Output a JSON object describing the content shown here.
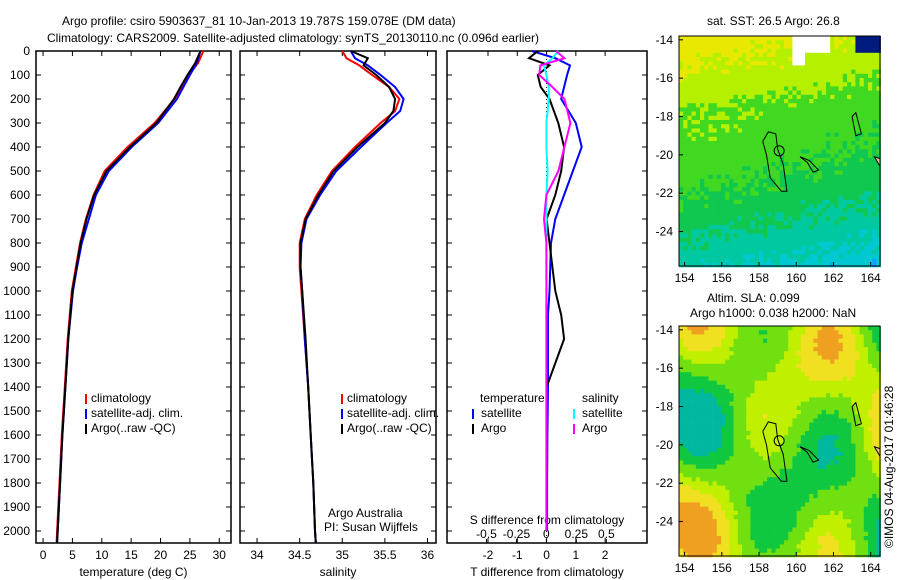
{
  "title": {
    "line1": "Argo profile: csiro 5903637_81 10-Jan-2013 19.787S 159.078E (DM data)",
    "line2": "Climatology: CARS2009. Satellite-adjusted climatology: synTS_20130110.nc (0.096d earlier)"
  },
  "colors": {
    "climatology": "#ff0000",
    "satellite": "#0000ff",
    "argo": "#000000",
    "sal_satellite": "#00ffff",
    "sal_argo": "#ff00ff"
  },
  "chart_data": [
    {
      "type": "line",
      "id": "temperature",
      "xlabel": "temperature (deg C)",
      "ylabel": "",
      "xlim": [
        -1.2,
        32
      ],
      "ylim": [
        2050,
        0
      ],
      "xticks": [
        0,
        5,
        10,
        15,
        20,
        25,
        30
      ],
      "yticks": [
        0,
        100,
        200,
        300,
        400,
        500,
        600,
        700,
        800,
        900,
        1000,
        1100,
        1200,
        1300,
        1400,
        1500,
        1600,
        1700,
        1800,
        1900,
        2000
      ],
      "depth": [
        0,
        50,
        100,
        150,
        200,
        300,
        400,
        500,
        600,
        700,
        800,
        900,
        1000,
        1200,
        1400,
        1600,
        1800,
        2000,
        2050
      ],
      "series": [
        {
          "name": "climatology",
          "color": "#ff0000",
          "values": [
            27.3,
            26.4,
            24.8,
            23.6,
            22.4,
            19.0,
            14.4,
            10.5,
            8.6,
            7.3,
            6.3,
            5.6,
            4.9,
            4.2,
            3.7,
            3.2,
            2.8,
            2.4,
            2.3
          ]
        },
        {
          "name": "satellite-adj. clim.",
          "color": "#0000ff",
          "values": [
            26.8,
            26.2,
            25.0,
            23.9,
            22.8,
            19.6,
            15.1,
            11.2,
            9.0,
            7.8,
            6.6,
            5.8,
            5.1,
            4.3,
            3.8,
            3.3,
            2.9,
            2.5,
            2.4
          ]
        },
        {
          "name": "Argo(..raw -QC)",
          "color": "#000000",
          "values": [
            26.8,
            25.9,
            24.6,
            23.4,
            22.3,
            19.3,
            14.8,
            10.8,
            8.7,
            7.4,
            6.4,
            5.7,
            5.0,
            4.3,
            3.8,
            3.3,
            2.9,
            2.5,
            2.4
          ]
        }
      ],
      "legend": [
        "climatology",
        "satellite-adj. clim.",
        "Argo(..raw -QC)"
      ]
    },
    {
      "type": "line",
      "id": "salinity",
      "xlabel": "salinity",
      "xlim": [
        33.8,
        36.1
      ],
      "ylim": [
        2050,
        0
      ],
      "xticks": [
        34,
        34.5,
        35,
        35.5,
        36
      ],
      "depth": [
        0,
        30,
        60,
        100,
        150,
        200,
        250,
        300,
        400,
        500,
        600,
        700,
        800,
        900,
        1000,
        1200,
        1400,
        1600,
        1800,
        2000,
        2050
      ],
      "series": [
        {
          "name": "climatology",
          "color": "#ff0000",
          "values": [
            35.0,
            35.05,
            35.2,
            35.35,
            35.55,
            35.67,
            35.62,
            35.45,
            35.15,
            34.88,
            34.7,
            34.56,
            34.5,
            34.5,
            34.52,
            34.56,
            34.6,
            34.63,
            34.66,
            34.68,
            34.69
          ]
        },
        {
          "name": "satellite-adj. clim.",
          "color": "#0000ff",
          "values": [
            35.1,
            35.15,
            35.3,
            35.45,
            35.62,
            35.72,
            35.68,
            35.52,
            35.22,
            34.93,
            34.74,
            34.58,
            34.52,
            34.51,
            34.53,
            34.56,
            34.6,
            34.63,
            34.66,
            34.68,
            34.69
          ]
        },
        {
          "name": "Argo(..raw -QC)",
          "color": "#000000",
          "values": [
            35.1,
            35.3,
            35.25,
            35.4,
            35.55,
            35.62,
            35.6,
            35.5,
            35.18,
            34.9,
            34.72,
            34.57,
            34.51,
            34.51,
            34.53,
            34.57,
            34.6,
            34.63,
            34.66,
            34.68,
            34.69
          ]
        }
      ],
      "legend": [
        "climatology",
        "satellite-adj. clim.",
        "Argo(..raw -QC)"
      ],
      "annotation": [
        "Argo Australia",
        "PI: Susan Wijffels"
      ]
    },
    {
      "type": "line",
      "id": "difference",
      "xlabel": "T difference from climatology",
      "x2label": "S difference from climatology",
      "xlim": [
        -3.4,
        3.43
      ],
      "x2lim": [
        -0.83,
        0.84
      ],
      "ylim": [
        2050,
        0
      ],
      "xticks": [
        -2,
        -1,
        0,
        1,
        2
      ],
      "x2ticks": [
        -0.5,
        -0.25,
        0,
        0.25,
        0.5
      ],
      "depth": [
        0,
        30,
        60,
        100,
        150,
        200,
        300,
        400,
        500,
        600,
        700,
        800,
        1000,
        1100,
        1200,
        1400,
        1600,
        1800,
        2000
      ],
      "series": [
        {
          "name": "temperature satellite",
          "color": "#0000ff",
          "axis": "T",
          "values": [
            -0.5,
            0.3,
            0.8,
            0.7,
            0.6,
            0.5,
            1.0,
            1.2,
            0.9,
            0.6,
            0.3,
            0.15,
            0.1,
            0.05,
            0.05,
            0.05,
            0.03,
            0.02,
            0.02
          ]
        },
        {
          "name": "temperature Argo",
          "color": "#000000",
          "axis": "T",
          "values": [
            -0.3,
            -0.6,
            0.1,
            -0.3,
            -0.2,
            0.1,
            0.4,
            0.6,
            0.5,
            0.3,
            0.0,
            0.1,
            0.3,
            0.5,
            0.6,
            0.0,
            0.0,
            0.0,
            0.0
          ]
        },
        {
          "name": "salinity satellite",
          "color": "#00ffff",
          "axis": "S",
          "values": [
            0.1,
            0.05,
            -0.02,
            0.0,
            0.02,
            0.02,
            0.0,
            0.0,
            0.01,
            0.0,
            0.0,
            0.0,
            0.0,
            0.0,
            0.0,
            0.0,
            0.0,
            0.0,
            0.0
          ]
        },
        {
          "name": "salinity Argo",
          "color": "#ff00ff",
          "axis": "S",
          "values": [
            0.08,
            0.15,
            -0.05,
            -0.06,
            0.05,
            0.15,
            0.2,
            0.15,
            0.1,
            0.0,
            -0.02,
            0.0,
            0.0,
            0.0,
            0.0,
            0.0,
            0.0,
            0.0,
            0.0
          ]
        }
      ],
      "legend_headers": [
        "temperature",
        "salinity"
      ],
      "legend": [
        "satellite",
        "Argo",
        "satellite",
        "Argo"
      ]
    }
  ],
  "maps": [
    {
      "title": "sat. SST: 26.5 Argo: 26.8",
      "xticks": [
        "154",
        "156",
        "158",
        "160",
        "162",
        "164"
      ],
      "yticks": [
        "-14",
        "-16",
        "-18",
        "-20",
        "-22",
        "-24"
      ]
    },
    {
      "title1": "Altim. SLA: 0.099",
      "title2": "Argo h1000: 0.038 h2000: NaN",
      "xticks": [
        "154",
        "156",
        "158",
        "160",
        "162",
        "164"
      ],
      "yticks": [
        "-14",
        "-16",
        "-18",
        "-20",
        "-22",
        "-24"
      ]
    }
  ],
  "credit": "©IMOS 04-Aug-2017 01:46:28"
}
